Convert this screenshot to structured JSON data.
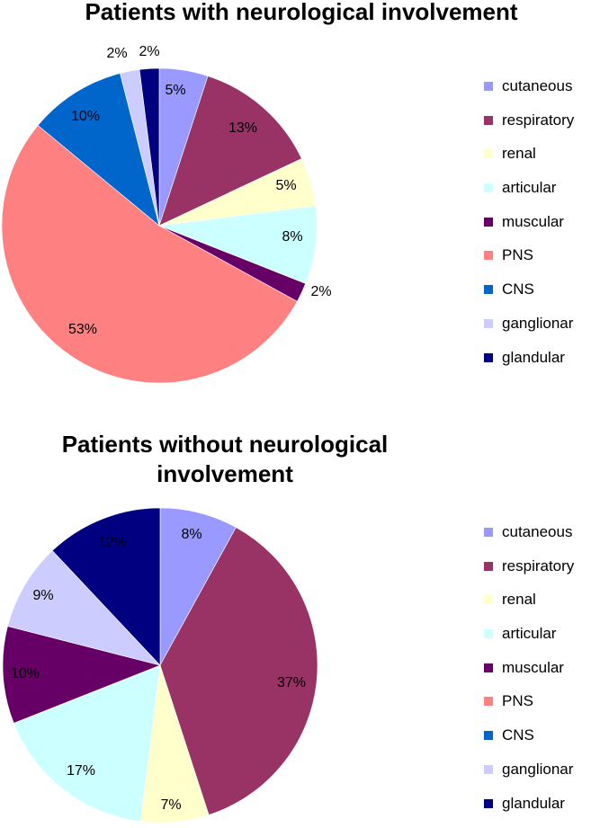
{
  "chart_data": [
    {
      "type": "pie",
      "title": "Patients with neurological involvement",
      "categories": [
        "cutaneous",
        "respiratory",
        "renal",
        "articular",
        "muscular",
        "PNS",
        "CNS",
        "ganglionar",
        "glandular"
      ],
      "values": [
        5,
        13,
        5,
        8,
        2,
        53,
        10,
        2,
        2
      ],
      "labels": [
        "5%",
        "13%",
        "5%",
        "8%",
        "2%",
        "53%",
        "10%",
        "2%",
        "2%"
      ],
      "colors": [
        "#9999ff",
        "#993366",
        "#ffffcc",
        "#ccffff",
        "#660066",
        "#ff8080",
        "#0066cc",
        "#ccccff",
        "#000080"
      ],
      "legend": "right"
    },
    {
      "type": "pie",
      "title": "Patients without neurological\ninvolvement",
      "categories": [
        "cutaneous",
        "respiratory",
        "renal",
        "articular",
        "muscular",
        "PNS",
        "CNS",
        "ganglionar",
        "glandular"
      ],
      "values": [
        8,
        37,
        7,
        17,
        10,
        0,
        0,
        9,
        12
      ],
      "labels": [
        "8%",
        "37%",
        "7%",
        "17%",
        "10%",
        "",
        "",
        "9%",
        "12%"
      ],
      "colors": [
        "#9999ff",
        "#993366",
        "#ffffcc",
        "#ccffff",
        "#660066",
        "#ff8080",
        "#0066cc",
        "#ccccff",
        "#000080"
      ],
      "legend": "right"
    }
  ]
}
